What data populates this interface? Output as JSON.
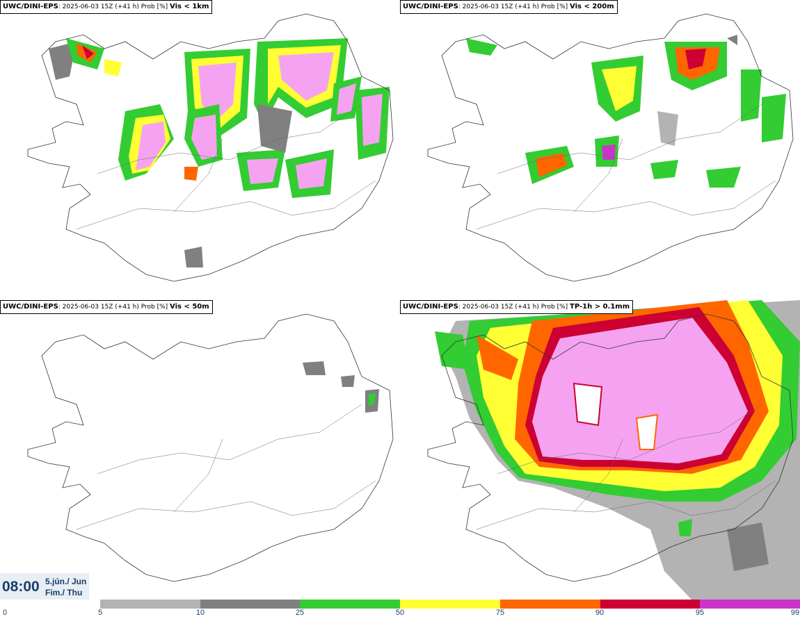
{
  "panels": [
    {
      "model": "UWC/DINI-EPS",
      "meta": ": 2025-06-03 15Z (+41 h) Prob [%]",
      "variable": "Vis < 1km"
    },
    {
      "model": "UWC/DINI-EPS",
      "meta": ": 2025-06-03 15Z (+41 h) Prob [%]",
      "variable": "Vis < 200m"
    },
    {
      "model": "UWC/DINI-EPS",
      "meta": ": 2025-06-03 15Z (+41 h) Prob [%]",
      "variable": "Vis < 50m"
    },
    {
      "model": "UWC/DINI-EPS",
      "meta": ": 2025-06-03 15Z (+41 h) Prob [%]",
      "variable": "TP-1h > 0.1mm"
    }
  ],
  "valid_time": {
    "time": "08:00",
    "date_line1": "5.jún./ Jun",
    "date_line2": "Fim./ Thu"
  },
  "colorbar": {
    "ticks": [
      "0",
      "5",
      "10",
      "25",
      "50",
      "75",
      "90",
      "95",
      "99"
    ],
    "colors": [
      "#ffffff",
      "#b3b3b3",
      "#808080",
      "#33cc33",
      "#ffff33",
      "#ff6600",
      "#cc0033",
      "#cc33cc",
      "#f5a3f0"
    ]
  }
}
